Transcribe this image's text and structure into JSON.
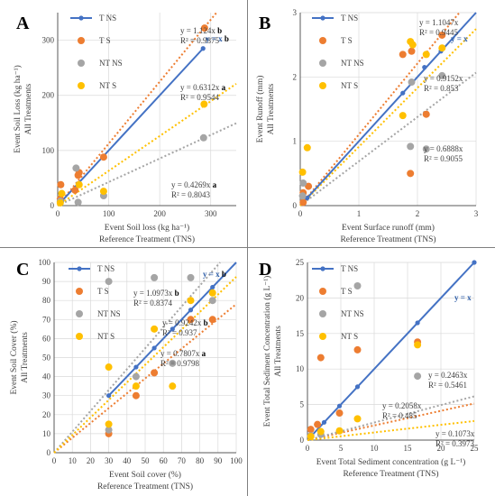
{
  "chart_data": [
    {
      "panel": "A",
      "type": "scatter",
      "xlabel": "Event Soil loss (kg ha⁻¹)",
      "xsublabel": "Reference Treatment (TNS)",
      "ylabel": "Event Soil Loss (kg ha⁻¹)",
      "ysublabel": "All Treatments",
      "xlim": [
        0,
        350
      ],
      "ylim": [
        0,
        350
      ],
      "xticks": [
        0,
        100,
        200,
        300
      ],
      "yticks": [
        0,
        100,
        200,
        300
      ],
      "legend": [
        "T NS",
        "T S",
        "NT NS",
        "NT S"
      ],
      "series": [
        {
          "name": "T NS",
          "color": "#4472c4",
          "style": "line-markers",
          "points": [
            [
              8,
              8
            ],
            [
              40,
              40
            ],
            [
              90,
              90
            ],
            [
              285,
              285
            ]
          ]
        },
        {
          "name": "T S",
          "color": "#ed7d31",
          "style": "markers",
          "points": [
            [
              5,
              12
            ],
            [
              6,
              38
            ],
            [
              34,
              28
            ],
            [
              40,
              55
            ],
            [
              42,
              60
            ],
            [
              90,
              88
            ],
            [
              288,
              322
            ]
          ]
        },
        {
          "name": "NT NS",
          "color": "#a5a5a5",
          "style": "markers",
          "points": [
            [
              5,
              8
            ],
            [
              36,
              68
            ],
            [
              40,
              6
            ],
            [
              90,
              18
            ],
            [
              286,
              123
            ]
          ]
        },
        {
          "name": "NT S",
          "color": "#ffc000",
          "style": "markers",
          "points": [
            [
              5,
              5
            ],
            [
              8,
              22
            ],
            [
              42,
              38
            ],
            [
              90,
              26
            ],
            [
              287,
              184
            ]
          ]
        }
      ],
      "trendlines": [
        {
          "series": "T S",
          "color": "#ed7d31",
          "slope": 1.124
        },
        {
          "series": "NT NS",
          "color": "#a5a5a5",
          "slope": 0.4269
        },
        {
          "series": "NT S",
          "color": "#ffc000",
          "slope": 0.6312
        }
      ],
      "annotations": [
        {
          "eq": "y = 1.124x",
          "letter": "b",
          "r2": "R² = 0.9875"
        },
        {
          "eq": "y = x",
          "letter": "b",
          "r2": ""
        },
        {
          "eq": "y = 0.6312x",
          "letter": "a",
          "r2": "R² = 0.9544"
        },
        {
          "eq": "y = 0.4269x",
          "letter": "a",
          "r2": "R² = 0.8043"
        }
      ]
    },
    {
      "panel": "B",
      "type": "scatter",
      "xlabel": "Event Surface runoff (mm)",
      "xsublabel": "Reference Treatment (TNS)",
      "ylabel": "Event Runoff (mm)",
      "ysublabel": "All Treatments",
      "xlim": [
        0,
        3
      ],
      "ylim": [
        0,
        3
      ],
      "xticks": [
        0,
        1,
        2,
        3
      ],
      "yticks": [
        0,
        1,
        2,
        3
      ],
      "legend": [
        "T NS",
        "T S",
        "NT NS",
        "NT S"
      ],
      "series": [
        {
          "name": "T NS",
          "color": "#4472c4",
          "style": "line-markers",
          "points": [
            [
              0.05,
              0.05
            ],
            [
              0.12,
              0.12
            ],
            [
              1.75,
              1.75
            ],
            [
              2.12,
              2.15
            ],
            [
              2.4,
              2.4
            ]
          ]
        },
        {
          "name": "T S",
          "color": "#ed7d31",
          "style": "markers",
          "points": [
            [
              0.05,
              0.05
            ],
            [
              0.05,
              0.2
            ],
            [
              0.14,
              0.3
            ],
            [
              1.75,
              2.35
            ],
            [
              1.88,
              0.5
            ],
            [
              1.9,
              2.4
            ],
            [
              2.15,
              1.42
            ],
            [
              2.42,
              2.65
            ]
          ]
        },
        {
          "name": "NT NS",
          "color": "#a5a5a5",
          "style": "markers",
          "points": [
            [
              0.04,
              0.15
            ],
            [
              0.05,
              0.35
            ],
            [
              1.88,
              0.92
            ],
            [
              1.9,
              1.92
            ],
            [
              2.15,
              0.88
            ],
            [
              2.42,
              2.02
            ]
          ]
        },
        {
          "name": "NT S",
          "color": "#ffc000",
          "style": "markers",
          "points": [
            [
              0.04,
              0.52
            ],
            [
              0.12,
              0.9
            ],
            [
              1.75,
              1.4
            ],
            [
              1.88,
              2.55
            ],
            [
              1.92,
              2.5
            ],
            [
              2.15,
              2.35
            ],
            [
              2.42,
              2.45
            ]
          ]
        }
      ],
      "trendlines": [
        {
          "series": "T S",
          "color": "#ed7d31",
          "slope": 1.1047
        },
        {
          "series": "NT NS",
          "color": "#a5a5a5",
          "slope": 0.6888
        },
        {
          "series": "NT S",
          "color": "#ffc000",
          "slope": 0.9152
        }
      ],
      "annotations": [
        {
          "eq": "y = 1.1047x",
          "r2": "R² = 0.9445"
        },
        {
          "eq": "y = x",
          "r2": ""
        },
        {
          "eq": "y = 0.9152x",
          "r2": "R² = 0.853"
        },
        {
          "eq": "y = 0.6888x",
          "r2": "R² = 0.9055"
        }
      ]
    },
    {
      "panel": "C",
      "type": "scatter",
      "xlabel": "Event Soil cover (%)",
      "xsublabel": "Reference Treatment (TNS)",
      "ylabel": "Event Soil Cover (%)",
      "ysublabel": "All Treatments",
      "xlim": [
        0,
        100
      ],
      "ylim": [
        0,
        100
      ],
      "xticks": [
        0,
        10,
        20,
        30,
        40,
        50,
        60,
        70,
        80,
        90,
        100
      ],
      "yticks": [
        0,
        10,
        20,
        30,
        40,
        50,
        60,
        70,
        80,
        90,
        100
      ],
      "legend": [
        "T NS",
        "T S",
        "NT NS",
        "NT S"
      ],
      "series": [
        {
          "name": "T NS",
          "color": "#4472c4",
          "style": "line-markers",
          "points": [
            [
              30,
              30
            ],
            [
              45,
              45
            ],
            [
              55,
              55
            ],
            [
              65,
              65
            ],
            [
              75,
              75
            ],
            [
              87,
              87
            ]
          ]
        },
        {
          "name": "T S",
          "color": "#ed7d31",
          "style": "markers",
          "points": [
            [
              30,
              10
            ],
            [
              45,
              30
            ],
            [
              55,
              42
            ],
            [
              75,
              70
            ],
            [
              87,
              70
            ]
          ]
        },
        {
          "name": "NT NS",
          "color": "#a5a5a5",
          "style": "markers",
          "points": [
            [
              30,
              90
            ],
            [
              30,
              12
            ],
            [
              45,
              40
            ],
            [
              55,
              92
            ],
            [
              65,
              47
            ],
            [
              75,
              92
            ],
            [
              87,
              80
            ]
          ]
        },
        {
          "name": "NT S",
          "color": "#ffc000",
          "style": "markers",
          "points": [
            [
              30,
              15
            ],
            [
              30,
              45
            ],
            [
              45,
              35
            ],
            [
              55,
              65
            ],
            [
              65,
              35
            ],
            [
              75,
              80
            ],
            [
              87,
              84
            ]
          ]
        }
      ],
      "trendlines": [
        {
          "series": "T S",
          "color": "#ed7d31",
          "slope": 0.7807
        },
        {
          "series": "NT NS",
          "color": "#a5a5a5",
          "slope": 1.0973
        },
        {
          "series": "NT S",
          "color": "#ffc000",
          "slope": 0.9242
        }
      ],
      "annotations": [
        {
          "eq": "y = x",
          "letter": "b",
          "r2": ""
        },
        {
          "eq": "y = 1.0973x",
          "letter": "b",
          "r2": "R² = 0.8374"
        },
        {
          "eq": "y = 0.9242x",
          "letter": "b",
          "r2": "R² = 0.937"
        },
        {
          "eq": "y = 0.7807x",
          "letter": "a",
          "r2": "R² = 0.9798"
        }
      ]
    },
    {
      "panel": "D",
      "type": "scatter",
      "xlabel": "Event Total Sediment concentration (g L⁻¹)",
      "xsublabel": "Reference Treatment (TNS)",
      "ylabel": "Event Total Sediment Concentration (g L⁻¹)",
      "ysublabel": "All Treatments",
      "xlim": [
        0,
        25
      ],
      "ylim": [
        0,
        25
      ],
      "xticks": [
        0,
        5,
        10,
        15,
        20,
        25
      ],
      "yticks": [
        0,
        5,
        10,
        15,
        20,
        25
      ],
      "legend": [
        "T NS",
        "T S",
        "NT NS",
        "NT S"
      ],
      "series": [
        {
          "name": "T NS",
          "color": "#4472c4",
          "style": "line-markers",
          "points": [
            [
              0.5,
              0.5
            ],
            [
              2.5,
              2.5
            ],
            [
              4.8,
              4.8
            ],
            [
              7.5,
              7.5
            ],
            [
              16.5,
              16.5
            ],
            [
              25,
              25
            ]
          ]
        },
        {
          "name": "T S",
          "color": "#ed7d31",
          "style": "markers",
          "points": [
            [
              0.5,
              1.5
            ],
            [
              1.5,
              2.2
            ],
            [
              2.0,
              11.6
            ],
            [
              4.8,
              3.8
            ],
            [
              7.5,
              12.7
            ],
            [
              16.5,
              13.8
            ]
          ]
        },
        {
          "name": "NT NS",
          "color": "#a5a5a5",
          "style": "markers",
          "points": [
            [
              0.5,
              0.6
            ],
            [
              2.0,
              0.8
            ],
            [
              7.5,
              21.7
            ],
            [
              16.5,
              9.0
            ]
          ]
        },
        {
          "name": "NT S",
          "color": "#ffc000",
          "style": "markers",
          "points": [
            [
              0.5,
              0.5
            ],
            [
              2.0,
              1.2
            ],
            [
              4.8,
              1.3
            ],
            [
              7.5,
              3.0
            ],
            [
              16.5,
              13.4
            ]
          ]
        }
      ],
      "trendlines": [
        {
          "series": "T S",
          "color": "#ed7d31",
          "slope": 0.2058
        },
        {
          "series": "NT NS",
          "color": "#a5a5a5",
          "slope": 0.2463
        },
        {
          "series": "NT S",
          "color": "#ffc000",
          "slope": 0.1073
        }
      ],
      "annotations": [
        {
          "eq": "y = x",
          "r2": ""
        },
        {
          "eq": "y = 0.2463x",
          "r2": "R² = 0.5461"
        },
        {
          "eq": "y = 0.2058x",
          "r2": "R² = 0.485"
        },
        {
          "eq": "y = 0.1073x",
          "r2": "R² = 0.3973"
        }
      ]
    }
  ]
}
